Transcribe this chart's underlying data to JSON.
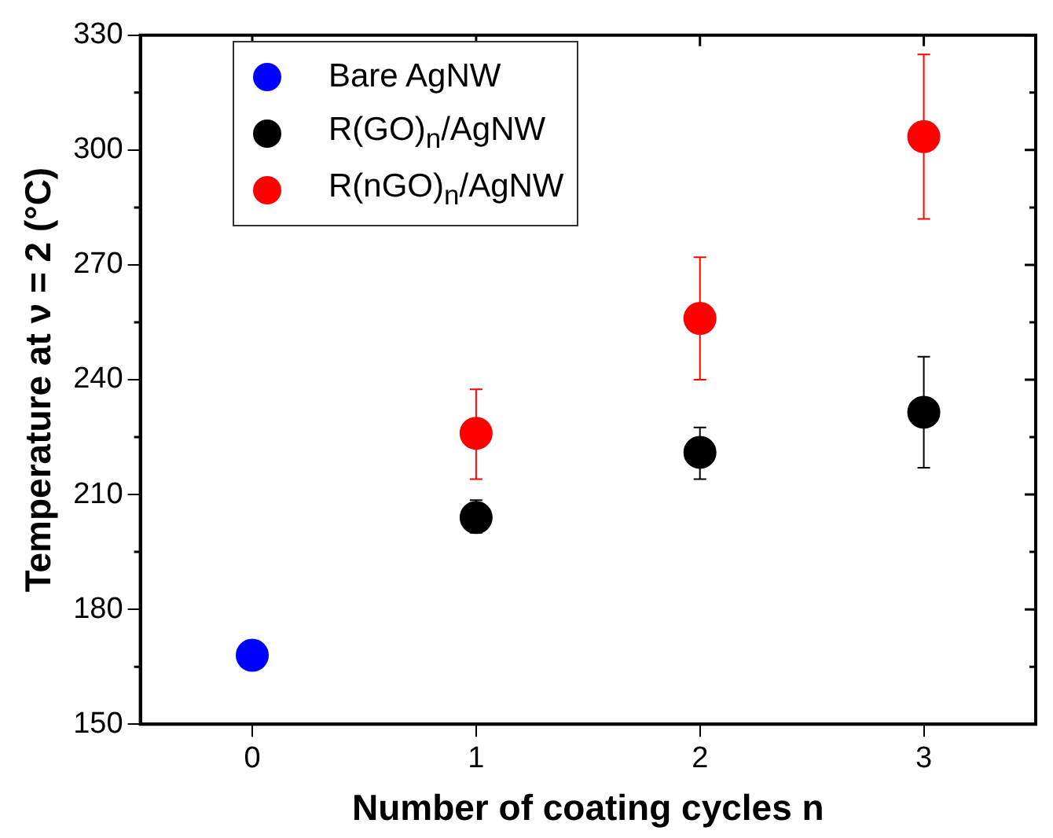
{
  "chart_data": {
    "type": "scatter",
    "xlabel": "Number of coating cycles n",
    "ylabel": "Temperature at ν = 2 (°C)",
    "xlim": [
      -0.5,
      3.5
    ],
    "xticks": [
      0,
      1,
      2,
      3
    ],
    "ylim": [
      150,
      330
    ],
    "yticks": [
      150,
      180,
      210,
      240,
      270,
      300,
      330
    ],
    "grid": false,
    "legend": "top left",
    "marker": "circle",
    "series": [
      {
        "name": "Bare AgNW",
        "color": "#0000ff",
        "x": [
          0
        ],
        "values": [
          168
        ]
      },
      {
        "name": "R(GO)$_{n}$/AgNW",
        "color": "#000000",
        "x": [
          1,
          2,
          3
        ],
        "values": [
          204,
          221,
          231.5
        ],
        "errors": [
          [
            200,
            208.5
          ],
          [
            214,
            227.5
          ],
          [
            217,
            246
          ]
        ]
      },
      {
        "name": "R(nGO)$_{n}$/AgNW",
        "color": "#ff0000",
        "x": [
          1,
          2,
          3
        ],
        "values": [
          226,
          256,
          303.5
        ],
        "errors": [
          [
            214,
            237.5
          ],
          [
            240,
            272
          ],
          [
            282,
            325
          ]
        ]
      }
    ]
  }
}
